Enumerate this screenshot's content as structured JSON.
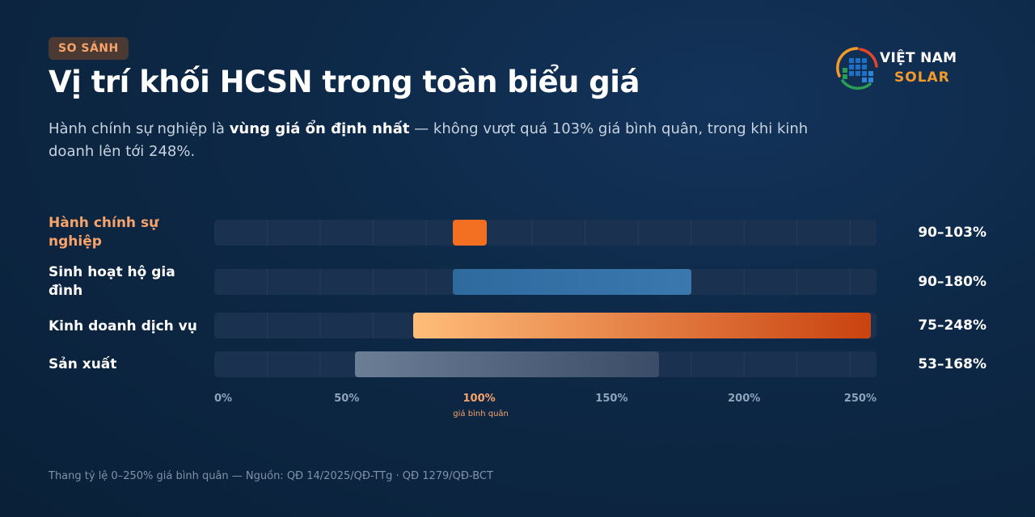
{
  "badge": "SO SÁNH",
  "title": "Vị trí khối HCSN trong toàn biểu giá",
  "subtitle": {
    "part1": "Hành chính sự nghiệp là ",
    "bold": "vùng giá ổn định nhất",
    "part2": " — không vượt quá 103% giá bình quân, trong khi kinh doanh lên tới 248%."
  },
  "logo": {
    "line1": "VIỆT NAM",
    "line2": "SOLAR"
  },
  "footnote": "Thang tỷ lệ 0–250% giá bình quân — Nguồn: QĐ 14/2025/QĐ-TTg · QĐ 1279/QĐ-BCT",
  "colors": {
    "accent": "#f7a36a",
    "hcsn": "#f36f21",
    "household": "#3a78ad",
    "business_start": "#ffbd7a",
    "business_end": "#c9420f",
    "production": "#6b7e96"
  },
  "chart_data": {
    "type": "range-bar",
    "orientation": "horizontal",
    "categories": [
      "Hành chính sự nghiệp",
      "Sinh hoạt hộ gia đình",
      "Kinh doanh dịch vụ",
      "Sản xuất"
    ],
    "ranges": [
      {
        "min": 90,
        "max": 103,
        "label": "90–103%"
      },
      {
        "min": 90,
        "max": 180,
        "label": "90–180%"
      },
      {
        "min": 75,
        "max": 248,
        "label": "75–248%"
      },
      {
        "min": 53,
        "max": 168,
        "label": "53–168%"
      }
    ],
    "xlim": [
      0,
      250
    ],
    "ticks": [
      {
        "value": 0,
        "label": "0%"
      },
      {
        "value": 50,
        "label": "50%"
      },
      {
        "value": 100,
        "label": "100%",
        "note": "giá bình quân"
      },
      {
        "value": 150,
        "label": "150%"
      },
      {
        "value": 200,
        "label": "200%"
      },
      {
        "value": 250,
        "label": "250%"
      }
    ],
    "highlight_category": "Hành chính sự nghiệp",
    "grid": true,
    "legend": "none"
  }
}
